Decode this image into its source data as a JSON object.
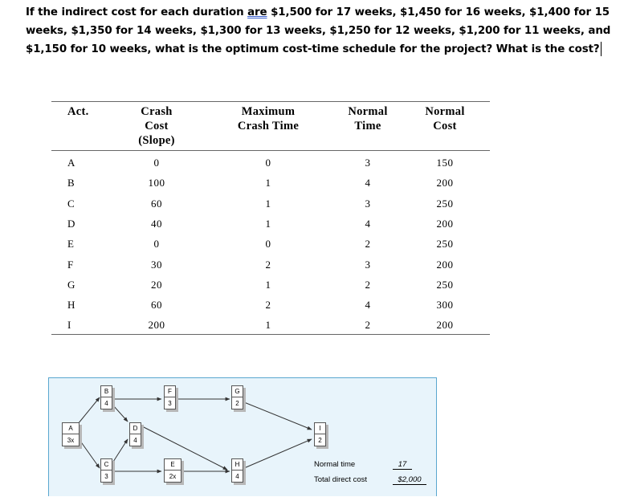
{
  "question": {
    "part1": "If the indirect cost for each duration ",
    "underlined": "are",
    "part2": " $1,500 for 17 weeks, $1,450 for 16 weeks, $1,400 for 15 weeks, $1,350 for 14 weeks, $1,300 for 13 weeks, $1,250 for 12 weeks, $1,200 for 11 weeks, and $1,150 for 10 weeks, what is the optimum cost-time schedule for the project? What is the cost?"
  },
  "table": {
    "headers": {
      "act": [
        "Act."
      ],
      "crash_cost": [
        "Crash",
        "Cost",
        "(Slope)"
      ],
      "max_crash": [
        "Maximum",
        "Crash Time"
      ],
      "normal_time": [
        "Normal",
        "Time"
      ],
      "normal_cost": [
        "Normal",
        "Cost"
      ]
    },
    "rows": [
      {
        "act": "A",
        "slope": "0",
        "max_crash": "0",
        "normal_time": "3",
        "normal_cost": "150"
      },
      {
        "act": "B",
        "slope": "100",
        "max_crash": "1",
        "normal_time": "4",
        "normal_cost": "200"
      },
      {
        "act": "C",
        "slope": "60",
        "max_crash": "1",
        "normal_time": "3",
        "normal_cost": "250"
      },
      {
        "act": "D",
        "slope": "40",
        "max_crash": "1",
        "normal_time": "4",
        "normal_cost": "200"
      },
      {
        "act": "E",
        "slope": "0",
        "max_crash": "0",
        "normal_time": "2",
        "normal_cost": "250"
      },
      {
        "act": "F",
        "slope": "30",
        "max_crash": "2",
        "normal_time": "3",
        "normal_cost": "200"
      },
      {
        "act": "G",
        "slope": "20",
        "max_crash": "1",
        "normal_time": "2",
        "normal_cost": "250"
      },
      {
        "act": "H",
        "slope": "60",
        "max_crash": "2",
        "normal_time": "4",
        "normal_cost": "300"
      },
      {
        "act": "I",
        "slope": "200",
        "max_crash": "1",
        "normal_time": "2",
        "normal_cost": "200"
      }
    ]
  },
  "network": {
    "nodes": {
      "A": {
        "label": "A",
        "duration": "3x"
      },
      "B": {
        "label": "B",
        "duration": "4"
      },
      "C": {
        "label": "C",
        "duration": "3"
      },
      "D": {
        "label": "D",
        "duration": "4"
      },
      "E": {
        "label": "E",
        "duration": "2x"
      },
      "F": {
        "label": "F",
        "duration": "3"
      },
      "G": {
        "label": "G",
        "duration": "2"
      },
      "H": {
        "label": "H",
        "duration": "4"
      },
      "I": {
        "label": "I",
        "duration": "2"
      }
    },
    "legend": {
      "normal_time_label": "Normal time",
      "normal_time_value": "17",
      "total_cost_label": "Total direct cost",
      "total_cost_value": "$2,000"
    }
  }
}
